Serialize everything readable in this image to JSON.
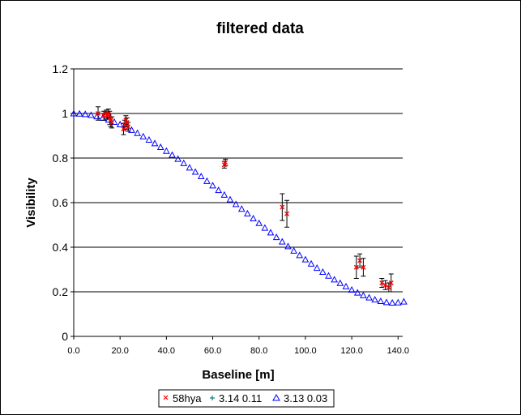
{
  "chart_data": {
    "type": "scatter",
    "title": "filtered data",
    "xlabel": "Baseline [m]",
    "ylabel": "Visibility",
    "xlim": [
      0,
      142
    ],
    "ylim": [
      0,
      1.2
    ],
    "x_ticks": [
      "0.0",
      "20.0",
      "40.0",
      "60.0",
      "80.0",
      "100.0",
      "120.0",
      "140.0"
    ],
    "y_ticks": [
      "0",
      "0.2",
      "0.4",
      "0.6",
      "0.8",
      "1",
      "1.2"
    ],
    "grid": "horizontal major",
    "legend_position": "bottom",
    "colors": {
      "58hya": "#ff0000",
      "fit1": "#008080",
      "fit2": "#0000ff",
      "error_bar": "#000000"
    },
    "series": [
      {
        "name": "58hya",
        "marker": "x",
        "x": [
          10.5,
          13.0,
          14.0,
          14.5,
          15.0,
          15.5,
          16.0,
          16.5,
          21.5,
          22.0,
          22.5,
          23.0,
          23.5,
          65.0,
          65.5,
          90.0,
          92.0,
          122.0,
          123.5,
          125.0,
          133.0,
          134.5,
          136.0,
          137.0
        ],
        "y": [
          1.0,
          0.99,
          1.0,
          0.99,
          1.0,
          0.98,
          0.97,
          0.96,
          0.93,
          0.95,
          0.97,
          0.96,
          0.94,
          0.77,
          0.78,
          0.58,
          0.55,
          0.31,
          0.34,
          0.31,
          0.24,
          0.23,
          0.22,
          0.24
        ],
        "error": [
          0.03,
          0.02,
          0.015,
          0.015,
          0.02,
          0.03,
          0.03,
          0.025,
          0.025,
          0.02,
          0.02,
          0.02,
          0.02,
          0.015,
          0.015,
          0.06,
          0.06,
          0.05,
          0.03,
          0.04,
          0.02,
          0.02,
          0.02,
          0.04
        ]
      },
      {
        "name": "3.14 0.11",
        "marker": "+",
        "x": [],
        "y": []
      },
      {
        "name": "3.13 0.03",
        "marker": "triangle",
        "x": [
          0,
          2.5,
          5,
          7.5,
          10,
          12.5,
          15,
          17.5,
          20,
          22.5,
          25,
          27.5,
          30,
          32.5,
          35,
          37.5,
          40,
          42.5,
          45,
          47.5,
          50,
          52.5,
          55,
          57.5,
          60,
          62.5,
          65,
          67.5,
          70,
          72.5,
          75,
          77.5,
          80,
          82.5,
          85,
          87.5,
          90,
          92.5,
          95,
          97.5,
          100,
          102.5,
          105,
          107.5,
          110,
          112.5,
          115,
          117.5,
          120,
          122.5,
          125,
          127.5,
          130,
          132.5,
          135,
          137.5,
          140,
          142.5
        ],
        "y": [
          1.0,
          0.999,
          0.997,
          0.993,
          0.987,
          0.98,
          0.972,
          0.962,
          0.951,
          0.939,
          0.926,
          0.912,
          0.897,
          0.882,
          0.866,
          0.849,
          0.832,
          0.814,
          0.796,
          0.777,
          0.757,
          0.738,
          0.718,
          0.697,
          0.677,
          0.656,
          0.635,
          0.614,
          0.593,
          0.572,
          0.551,
          0.529,
          0.508,
          0.487,
          0.466,
          0.445,
          0.425,
          0.404,
          0.384,
          0.364,
          0.345,
          0.326,
          0.307,
          0.289,
          0.272,
          0.255,
          0.239,
          0.224,
          0.209,
          0.196,
          0.184,
          0.174,
          0.165,
          0.158,
          0.153,
          0.151,
          0.152,
          0.156
        ]
      }
    ]
  }
}
